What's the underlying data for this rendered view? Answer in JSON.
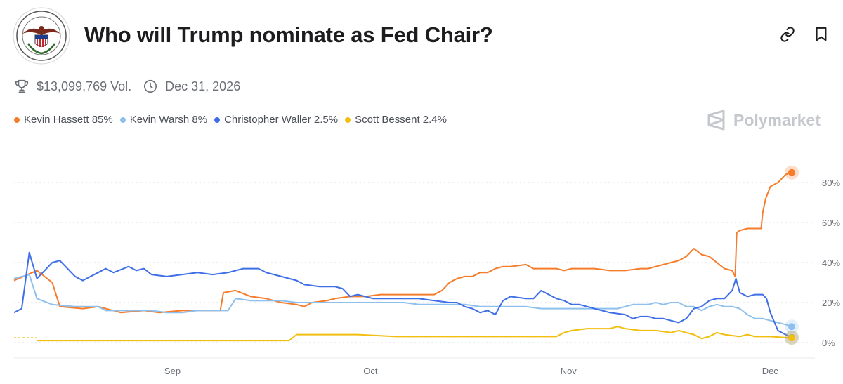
{
  "header": {
    "title": "Who will Trump nominate as Fed Chair?"
  },
  "meta": {
    "volume": "$13,099,769 Vol.",
    "end_date": "Dec 31, 2026"
  },
  "brand": {
    "name": "Polymarket"
  },
  "icons": {
    "link": "link-icon",
    "bookmark": "bookmark-icon",
    "trophy": "trophy-icon",
    "clock": "clock-icon",
    "logo": "polymarket-logo-icon"
  },
  "legend": [
    {
      "label": "Kevin Hassett 85%",
      "color": "#F57C2B"
    },
    {
      "label": "Kevin Warsh 8%",
      "color": "#8EC0EE"
    },
    {
      "label": "Christopher Waller 2.5%",
      "color": "#3F6FE6"
    },
    {
      "label": "Scott Bessent 2.4%",
      "color": "#F2BE0F"
    }
  ],
  "chart_data": {
    "type": "line",
    "x_ticks": [
      "Sep",
      "Oct",
      "Nov",
      "Dec"
    ],
    "y_ticks": [
      "0%",
      "20%",
      "40%",
      "60%",
      "80%"
    ],
    "ylim": [
      0,
      90
    ],
    "grid": true,
    "series": [
      {
        "name": "Kevin Hassett",
        "color": "#F57C2B",
        "points": [
          [
            0,
            31
          ],
          [
            3,
            36
          ],
          [
            5,
            30
          ],
          [
            6,
            18
          ],
          [
            9,
            17
          ],
          [
            11,
            18
          ],
          [
            14,
            15
          ],
          [
            17,
            16
          ],
          [
            19,
            15
          ],
          [
            22,
            16
          ],
          [
            25,
            16
          ],
          [
            27,
            16
          ],
          [
            27.4,
            25
          ],
          [
            29,
            26
          ],
          [
            31,
            23
          ],
          [
            33,
            22
          ],
          [
            35,
            20
          ],
          [
            37,
            19
          ],
          [
            38,
            18
          ],
          [
            39,
            20
          ],
          [
            41,
            21
          ],
          [
            42,
            22
          ],
          [
            44,
            23
          ],
          [
            46,
            23
          ],
          [
            48,
            24
          ],
          [
            49,
            24
          ],
          [
            52,
            24
          ],
          [
            54,
            24
          ],
          [
            55,
            24
          ],
          [
            56,
            26
          ],
          [
            57,
            30
          ],
          [
            58,
            32
          ],
          [
            59,
            33
          ],
          [
            60,
            33
          ],
          [
            61,
            35
          ],
          [
            62,
            35
          ],
          [
            63,
            37
          ],
          [
            64,
            38
          ],
          [
            65,
            38
          ],
          [
            67,
            39
          ],
          [
            68,
            37
          ],
          [
            70,
            37
          ],
          [
            71,
            37
          ],
          [
            72,
            36
          ],
          [
            73,
            37
          ],
          [
            74,
            37
          ],
          [
            75,
            37
          ],
          [
            76,
            37
          ],
          [
            78,
            36
          ],
          [
            80,
            36
          ],
          [
            82,
            37
          ],
          [
            83,
            37
          ],
          [
            84,
            38
          ],
          [
            85,
            39
          ],
          [
            86,
            40
          ],
          [
            87,
            41
          ],
          [
            88,
            43
          ],
          [
            89,
            47
          ],
          [
            90,
            44
          ],
          [
            91,
            43
          ],
          [
            92,
            40
          ],
          [
            93,
            37
          ],
          [
            94,
            36
          ],
          [
            94.4,
            33
          ],
          [
            94.6,
            55
          ],
          [
            95,
            56
          ],
          [
            96,
            57
          ],
          [
            97,
            57
          ],
          [
            97.8,
            57
          ],
          [
            98,
            65
          ],
          [
            98.4,
            72
          ],
          [
            99,
            78
          ],
          [
            100,
            80
          ],
          [
            101,
            84
          ],
          [
            101.8,
            85
          ]
        ]
      },
      {
        "name": "Kevin Warsh",
        "color": "#8EC0EE",
        "points": [
          [
            0,
            32
          ],
          [
            2,
            34
          ],
          [
            3,
            22
          ],
          [
            5,
            19
          ],
          [
            8,
            18
          ],
          [
            11,
            18
          ],
          [
            12,
            16
          ],
          [
            14,
            16
          ],
          [
            16,
            16
          ],
          [
            18,
            16
          ],
          [
            20,
            15
          ],
          [
            22,
            15
          ],
          [
            24,
            16
          ],
          [
            26,
            16
          ],
          [
            28,
            16
          ],
          [
            29,
            22
          ],
          [
            31,
            21
          ],
          [
            33,
            21
          ],
          [
            35,
            21
          ],
          [
            37,
            20
          ],
          [
            39,
            20
          ],
          [
            41,
            20
          ],
          [
            43,
            20
          ],
          [
            45,
            20
          ],
          [
            47,
            20
          ],
          [
            49,
            20
          ],
          [
            51,
            20
          ],
          [
            53,
            19
          ],
          [
            55,
            19
          ],
          [
            57,
            19
          ],
          [
            59,
            19
          ],
          [
            61,
            18
          ],
          [
            63,
            18
          ],
          [
            65,
            18
          ],
          [
            67,
            18
          ],
          [
            69,
            17
          ],
          [
            71,
            17
          ],
          [
            73,
            17
          ],
          [
            75,
            17
          ],
          [
            77,
            17
          ],
          [
            79,
            17
          ],
          [
            81,
            19
          ],
          [
            83,
            19
          ],
          [
            84,
            20
          ],
          [
            85,
            19
          ],
          [
            86,
            20
          ],
          [
            87,
            20
          ],
          [
            88,
            18
          ],
          [
            89,
            18
          ],
          [
            90,
            16
          ],
          [
            91,
            18
          ],
          [
            92,
            19
          ],
          [
            93,
            18
          ],
          [
            94,
            18
          ],
          [
            95,
            17
          ],
          [
            96,
            14
          ],
          [
            97,
            12
          ],
          [
            98,
            12
          ],
          [
            99,
            11
          ],
          [
            100,
            10
          ],
          [
            101,
            9
          ],
          [
            101.8,
            8
          ]
        ]
      },
      {
        "name": "Christopher Waller",
        "color": "#3F6FE6",
        "points": [
          [
            0,
            15
          ],
          [
            1,
            17
          ],
          [
            2,
            45
          ],
          [
            3,
            32
          ],
          [
            5,
            40
          ],
          [
            6,
            41
          ],
          [
            7,
            37
          ],
          [
            8,
            33
          ],
          [
            9,
            31
          ],
          [
            10,
            33
          ],
          [
            11,
            35
          ],
          [
            12,
            37
          ],
          [
            13,
            35
          ],
          [
            15,
            38
          ],
          [
            16,
            36
          ],
          [
            17,
            37
          ],
          [
            18,
            34
          ],
          [
            20,
            33
          ],
          [
            22,
            34
          ],
          [
            24,
            35
          ],
          [
            26,
            34
          ],
          [
            28,
            35
          ],
          [
            30,
            37
          ],
          [
            32,
            37
          ],
          [
            33,
            35
          ],
          [
            35,
            33
          ],
          [
            37,
            31
          ],
          [
            38,
            29
          ],
          [
            40,
            28
          ],
          [
            42,
            28
          ],
          [
            43,
            27
          ],
          [
            44,
            23
          ],
          [
            45,
            24
          ],
          [
            47,
            22
          ],
          [
            49,
            22
          ],
          [
            51,
            22
          ],
          [
            53,
            22
          ],
          [
            55,
            21
          ],
          [
            57,
            20
          ],
          [
            58,
            20
          ],
          [
            59,
            18
          ],
          [
            60,
            17
          ],
          [
            61,
            15
          ],
          [
            62,
            16
          ],
          [
            63,
            14
          ],
          [
            64,
            21
          ],
          [
            65,
            23
          ],
          [
            67,
            22
          ],
          [
            68,
            22
          ],
          [
            69,
            26
          ],
          [
            70,
            24
          ],
          [
            71,
            22
          ],
          [
            72,
            21
          ],
          [
            73,
            19
          ],
          [
            74,
            19
          ],
          [
            75,
            18
          ],
          [
            76,
            17
          ],
          [
            78,
            15
          ],
          [
            80,
            14
          ],
          [
            81,
            12
          ],
          [
            82,
            13
          ],
          [
            83,
            13
          ],
          [
            84,
            12
          ],
          [
            85,
            12
          ],
          [
            86,
            11
          ],
          [
            87,
            10
          ],
          [
            88,
            12
          ],
          [
            89,
            17
          ],
          [
            90,
            18
          ],
          [
            91,
            21
          ],
          [
            92,
            22
          ],
          [
            93,
            22
          ],
          [
            94,
            26
          ],
          [
            94.5,
            32
          ],
          [
            95,
            25
          ],
          [
            96,
            23
          ],
          [
            97,
            24
          ],
          [
            98,
            24
          ],
          [
            98.5,
            22
          ],
          [
            99,
            15
          ],
          [
            100,
            6
          ],
          [
            101,
            4
          ],
          [
            101.8,
            2.5
          ]
        ]
      },
      {
        "name": "Scott Bessent",
        "color": "#F2BE0F",
        "points": [
          [
            3,
            1
          ],
          [
            10,
            1
          ],
          [
            15,
            1
          ],
          [
            20,
            1
          ],
          [
            25,
            1
          ],
          [
            30,
            1
          ],
          [
            35,
            1
          ],
          [
            36,
            1
          ],
          [
            37,
            4
          ],
          [
            40,
            4
          ],
          [
            45,
            4
          ],
          [
            50,
            3
          ],
          [
            55,
            3
          ],
          [
            60,
            3
          ],
          [
            65,
            3
          ],
          [
            70,
            3
          ],
          [
            71,
            3
          ],
          [
            72,
            5
          ],
          [
            73,
            6
          ],
          [
            75,
            7
          ],
          [
            77,
            7
          ],
          [
            78,
            7
          ],
          [
            79,
            8
          ],
          [
            80,
            7
          ],
          [
            82,
            6
          ],
          [
            84,
            6
          ],
          [
            86,
            5
          ],
          [
            87,
            6
          ],
          [
            88,
            5
          ],
          [
            89,
            4
          ],
          [
            90,
            2
          ],
          [
            91,
            3
          ],
          [
            92,
            5
          ],
          [
            93,
            4
          ],
          [
            95,
            3
          ],
          [
            96,
            4
          ],
          [
            97,
            3
          ],
          [
            99,
            3
          ],
          [
            101,
            2.5
          ],
          [
            101.8,
            2.4
          ]
        ]
      }
    ]
  }
}
